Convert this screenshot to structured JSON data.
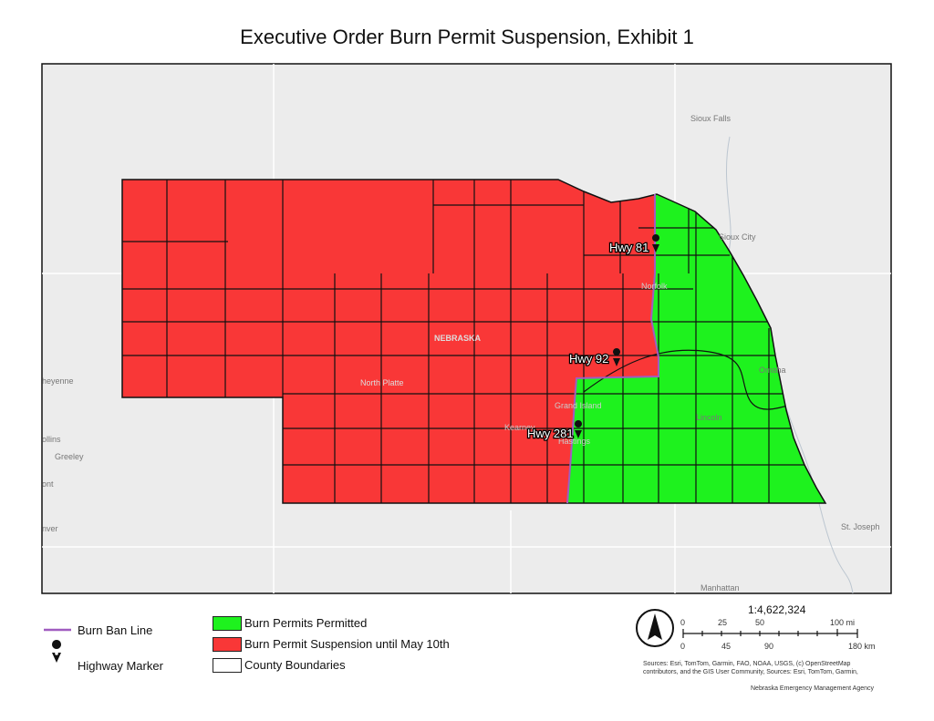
{
  "title": "Executive Order Burn Permit Suspension, Exhibit 1",
  "map": {
    "state_label": "NEBRASKA",
    "cities": [
      {
        "name": "Sioux Falls"
      },
      {
        "name": "Sioux City"
      },
      {
        "name": "Omaha"
      },
      {
        "name": "Lincoln"
      },
      {
        "name": "Norfolk"
      },
      {
        "name": "Grand Island"
      },
      {
        "name": "Kearney"
      },
      {
        "name": "Hastings"
      },
      {
        "name": "North Platte"
      },
      {
        "name": "heyenne"
      },
      {
        "name": "ollins"
      },
      {
        "name": "Greeley"
      },
      {
        "name": "ont"
      },
      {
        "name": "nver"
      },
      {
        "name": "St. Joseph"
      },
      {
        "name": "Manhattan"
      }
    ],
    "highway_markers": [
      {
        "label": "Hwy 81"
      },
      {
        "label": "Hwy 92"
      },
      {
        "label": "Hwy 281"
      }
    ],
    "colors": {
      "suspension": "#f93737",
      "permitted": "#1ef21e",
      "ban_line": "#a05cc0",
      "background": "#ececec"
    }
  },
  "legend": {
    "burn_ban_line": "Burn Ban Line",
    "highway_marker": "Highway Marker",
    "permitted": "Burn Permits Permitted",
    "suspension": "Burn Permit Suspension until May 10th",
    "county_boundaries": "County Boundaries"
  },
  "scale": {
    "ratio": "1:4,622,324",
    "mi_ticks": [
      "0",
      "25",
      "50",
      "100 mi"
    ],
    "km_ticks": [
      "0",
      "45",
      "90",
      "180 km"
    ]
  },
  "credits": {
    "sources_line1": "Sources:  Esri, TomTom, Garmin, FAO, NOAA, USGS, (c) OpenStreetMap",
    "sources_line2": "contributors, and the GIS User Community, Sources:  Esri, TomTom, Garmin,",
    "agency": "Nebraska Emergency Management Agency"
  }
}
